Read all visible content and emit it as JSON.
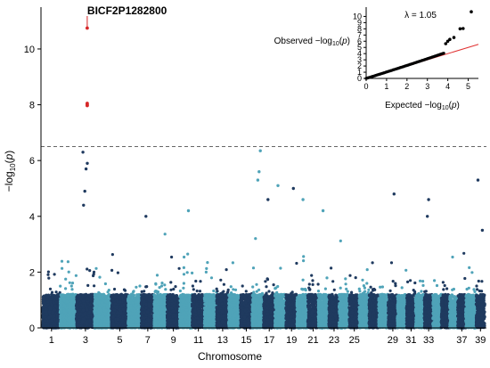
{
  "chart_data": [
    {
      "type": "scatter",
      "subtype": "manhattan",
      "xlabel": "Chromosome",
      "ylabel": "−log10(p)",
      "ylabel_parts": {
        "prefix": "−log",
        "sub": "10",
        "open": "(",
        "var": "p",
        "close": ")"
      },
      "ylim": [
        0,
        11.5
      ],
      "yticks": [
        0,
        2,
        4,
        6,
        8,
        10
      ],
      "xtick_labels": [
        "1",
        "3",
        "5",
        "7",
        "9",
        "11",
        "13",
        "15",
        "17",
        "19",
        "21",
        "23",
        "25",
        "29",
        "31",
        "33",
        "37",
        "39"
      ],
      "chromosome_count": 39,
      "significance_threshold": 6.5,
      "threshold_style": "dashed gray",
      "colors": {
        "odd_chromosomes": "#1f3a5f",
        "even_chromosomes": "#4fa3b8",
        "highlight": "#d62728",
        "threshold": "#666666"
      },
      "highlight_snp": {
        "label": "BICF2P1282800",
        "chromosome": 3,
        "value": 10.75
      },
      "highlight_points": [
        {
          "chromosome": 3,
          "value": 10.75
        },
        {
          "chromosome": 3,
          "value": 8.05
        },
        {
          "chromosome": 3,
          "value": 8.0
        },
        {
          "chromosome": 3,
          "value": 7.97
        }
      ],
      "notable_points": [
        {
          "chromosome": 3,
          "value": 6.3
        },
        {
          "chromosome": 3,
          "value": 5.9
        },
        {
          "chromosome": 3,
          "value": 5.7
        },
        {
          "chromosome": 3,
          "value": 4.9
        },
        {
          "chromosome": 3,
          "value": 4.4
        },
        {
          "chromosome": 16,
          "value": 6.35
        },
        {
          "chromosome": 16,
          "value": 5.6
        },
        {
          "chromosome": 16,
          "value": 5.3
        },
        {
          "chromosome": 17,
          "value": 4.6
        },
        {
          "chromosome": 18,
          "value": 5.1
        },
        {
          "chromosome": 19,
          "value": 5.0
        },
        {
          "chromosome": 20,
          "value": 4.6
        },
        {
          "chromosome": 22,
          "value": 4.2
        },
        {
          "chromosome": 7,
          "value": 4.0
        },
        {
          "chromosome": 10,
          "value": 4.2
        },
        {
          "chromosome": 29,
          "value": 4.8
        },
        {
          "chromosome": 33,
          "value": 4.6
        },
        {
          "chromosome": 33,
          "value": 4.0
        },
        {
          "chromosome": 39,
          "value": 5.3
        },
        {
          "chromosome": 39,
          "value": 3.5
        }
      ]
    },
    {
      "type": "scatter",
      "subtype": "qq",
      "xlabel_parts": {
        "prefix": "Expected −log",
        "sub": "10",
        "open": "(",
        "var": "p",
        "close": ")"
      },
      "ylabel_parts": {
        "prefix": "Observed −log",
        "sub": "10",
        "open": "(",
        "var": "p",
        "close": ")"
      },
      "annotation": "λ = 1.05",
      "xlim": [
        0,
        5.5
      ],
      "ylim": [
        0,
        11.5
      ],
      "xticks": [
        0,
        1,
        2,
        3,
        4,
        5
      ],
      "yticks": [
        0,
        1,
        2,
        3,
        4,
        5,
        6,
        7,
        8,
        9,
        10
      ],
      "reference_line": "y = x",
      "reference_color": "#e03030",
      "points_color": "#000000",
      "upper_points": [
        {
          "x": 3.9,
          "y": 5.6
        },
        {
          "x": 4.0,
          "y": 6.0
        },
        {
          "x": 4.1,
          "y": 6.3
        },
        {
          "x": 4.3,
          "y": 6.6
        },
        {
          "x": 4.6,
          "y": 8.0
        },
        {
          "x": 4.75,
          "y": 8.05
        },
        {
          "x": 5.15,
          "y": 10.75
        }
      ]
    }
  ]
}
